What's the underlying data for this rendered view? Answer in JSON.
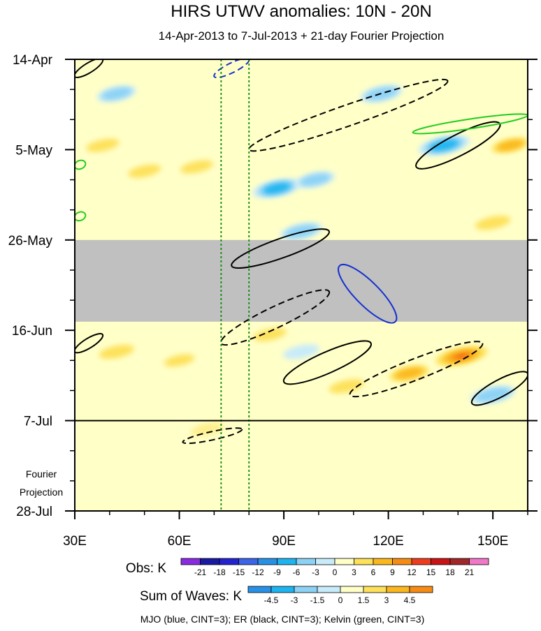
{
  "chart_data": {
    "type": "heatmap",
    "title": "HIRS UTWV anomalies: 10N - 20N",
    "subtitle": "14-Apr-2013 to 7-Jul-2013 + 21-day Fourier Projection",
    "x": {
      "label_values": [
        30,
        60,
        90,
        120,
        150
      ],
      "tick_labels": [
        "30E",
        "60E",
        "90E",
        "120E",
        "150E"
      ],
      "range": [
        30,
        160
      ],
      "units": "longitude (deg E)"
    },
    "y": {
      "tick_labels": [
        "14-Apr",
        "5-May",
        "26-May",
        "16-Jun",
        "7-Jul",
        "28-Jul"
      ],
      "day_values": [
        0,
        21,
        42,
        63,
        84,
        105
      ],
      "range_days": [
        0,
        105
      ],
      "observation_end_day": 84,
      "reversed": true
    },
    "projection_label_lines": [
      "Fourier",
      "Projection"
    ],
    "missing_data_band_days": [
      42,
      61
    ],
    "reference_longitudes": [
      72,
      80
    ],
    "obs_colorbar": {
      "label": "Obs: K",
      "levels": [
        "-21",
        "-18",
        "-15",
        "-12",
        "-9",
        "-6",
        "-3",
        "0",
        "3",
        "6",
        "9",
        "12",
        "15",
        "18",
        "21"
      ],
      "colors": [
        "#8a2be2",
        "#1a1aa0",
        "#2323d0",
        "#3c64e6",
        "#2891e6",
        "#1eb4f0",
        "#8cd2f5",
        "#c8ebfa",
        "#ffffc8",
        "#fde15a",
        "#fbb71e",
        "#f78c14",
        "#ee3c1e",
        "#c81414",
        "#a02828",
        "#f078c8"
      ]
    },
    "waves_colorbar": {
      "label": "Sum of Waves: K",
      "levels": [
        "-4.5",
        "-3",
        "-1.5",
        "0",
        "1.5",
        "3",
        "4.5"
      ],
      "colors": [
        "#2891e6",
        "#1eb4f0",
        "#8cd2f5",
        "#c8ebfa",
        "#ffffc8",
        "#fde15a",
        "#fbb71e",
        "#f78c14"
      ]
    },
    "contour_note": "MJO (blue, CINT=3); ER (black, CINT=3); Kelvin (green, CINT=3)",
    "contour_series": [
      {
        "name": "MJO",
        "color": "#1530d0"
      },
      {
        "name": "ER",
        "color": "#000000"
      },
      {
        "name": "Kelvin",
        "color": "#22cc22"
      }
    ],
    "contours": [
      {
        "wave": "MJO",
        "sign": "negative",
        "lon": [
          70,
          80
        ],
        "day": [
          0,
          4
        ]
      },
      {
        "wave": "MJO",
        "sign": "positive",
        "lon": [
          106,
          122
        ],
        "day": [
          48,
          61
        ]
      },
      {
        "wave": "ER",
        "sign": "positive",
        "lon": [
          30,
          38
        ],
        "day": [
          0,
          4
        ]
      },
      {
        "wave": "ER",
        "sign": "negative",
        "lon": [
          80,
          137
        ],
        "day": [
          5,
          21
        ]
      },
      {
        "wave": "ER",
        "sign": "positive",
        "lon": [
          128,
          152
        ],
        "day": [
          15,
          25
        ]
      },
      {
        "wave": "ER",
        "sign": "positive",
        "lon": [
          75,
          103
        ],
        "day": [
          40,
          48
        ]
      },
      {
        "wave": "ER",
        "sign": "negative",
        "lon": [
          72,
          103
        ],
        "day": [
          54,
          66
        ]
      },
      {
        "wave": "ER",
        "sign": "positive",
        "lon": [
          30,
          38
        ],
        "day": [
          64,
          68
        ]
      },
      {
        "wave": "ER",
        "sign": "positive",
        "lon": [
          90,
          115
        ],
        "day": [
          66,
          75
        ]
      },
      {
        "wave": "ER",
        "sign": "negative",
        "lon": [
          109,
          147
        ],
        "day": [
          66,
          78
        ]
      },
      {
        "wave": "ER",
        "sign": "positive",
        "lon": [
          144,
          160
        ],
        "day": [
          73,
          80
        ]
      },
      {
        "wave": "ER",
        "sign": "negative",
        "lon": [
          61,
          78
        ],
        "day": [
          86,
          89
        ]
      },
      {
        "wave": "Kelvin",
        "sign": "positive",
        "lon": [
          127,
          160
        ],
        "day": [
          13,
          17
        ]
      },
      {
        "wave": "Kelvin",
        "sign": "positive",
        "lon": [
          30,
          33
        ],
        "day": [
          24,
          25
        ]
      },
      {
        "wave": "Kelvin",
        "sign": "positive",
        "lon": [
          30,
          33
        ],
        "day": [
          36,
          37
        ]
      }
    ],
    "anomaly_features": [
      {
        "lon": 38,
        "day": 20,
        "value": 4
      },
      {
        "lon": 50,
        "day": 26,
        "value": 4
      },
      {
        "lon": 65,
        "day": 25,
        "value": 4
      },
      {
        "lon": 42,
        "day": 8,
        "value": -3
      },
      {
        "lon": 88,
        "day": 30,
        "value": -6
      },
      {
        "lon": 99,
        "day": 28,
        "value": -3
      },
      {
        "lon": 118,
        "day": 8,
        "value": -4
      },
      {
        "lon": 136,
        "day": 20,
        "value": -7
      },
      {
        "lon": 95,
        "day": 40,
        "value": -4
      },
      {
        "lon": 150,
        "day": 38,
        "value": 5
      },
      {
        "lon": 155,
        "day": 20,
        "value": 6
      },
      {
        "lon": 42,
        "day": 68,
        "value": 5
      },
      {
        "lon": 60,
        "day": 70,
        "value": 3
      },
      {
        "lon": 86,
        "day": 64,
        "value": 4
      },
      {
        "lon": 126,
        "day": 73,
        "value": 7
      },
      {
        "lon": 141,
        "day": 69,
        "value": 12
      },
      {
        "lon": 108,
        "day": 76,
        "value": 5
      },
      {
        "lon": 150,
        "day": 78,
        "value": -5
      },
      {
        "lon": 68,
        "day": 86,
        "value": 4
      },
      {
        "lon": 95,
        "day": 68,
        "value": -2
      }
    ]
  }
}
